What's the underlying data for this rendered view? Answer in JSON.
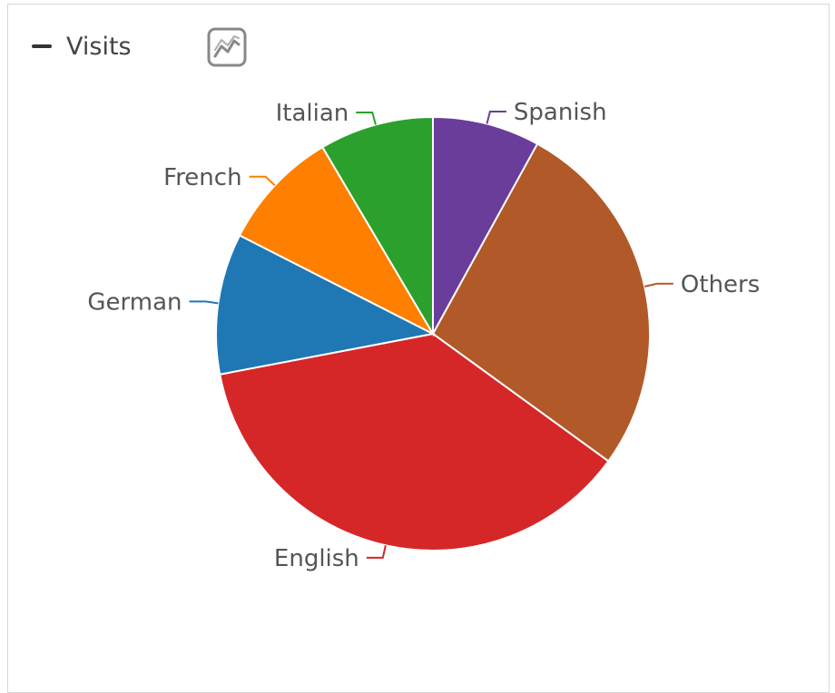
{
  "legend": {
    "label": "Visits",
    "swatch_color": "#333333"
  },
  "toolbar": {
    "chart_type_icon": "line-chart-icon"
  },
  "chart_data": {
    "type": "pie",
    "series": [
      {
        "name": "Visits",
        "slices": [
          {
            "label": "Spanish",
            "value": 8,
            "color": "#6a3d9a"
          },
          {
            "label": "Others",
            "value": 27,
            "color": "#b15928"
          },
          {
            "label": "English",
            "value": 37,
            "color": "#d62728"
          },
          {
            "label": "German",
            "value": 10.5,
            "color": "#1f77b4"
          },
          {
            "label": "French",
            "value": 9,
            "color": "#ff7f00"
          },
          {
            "label": "Italian",
            "value": 8.5,
            "color": "#2ca02c"
          }
        ]
      }
    ],
    "legend_position": "top-left",
    "start_angle": "top"
  }
}
